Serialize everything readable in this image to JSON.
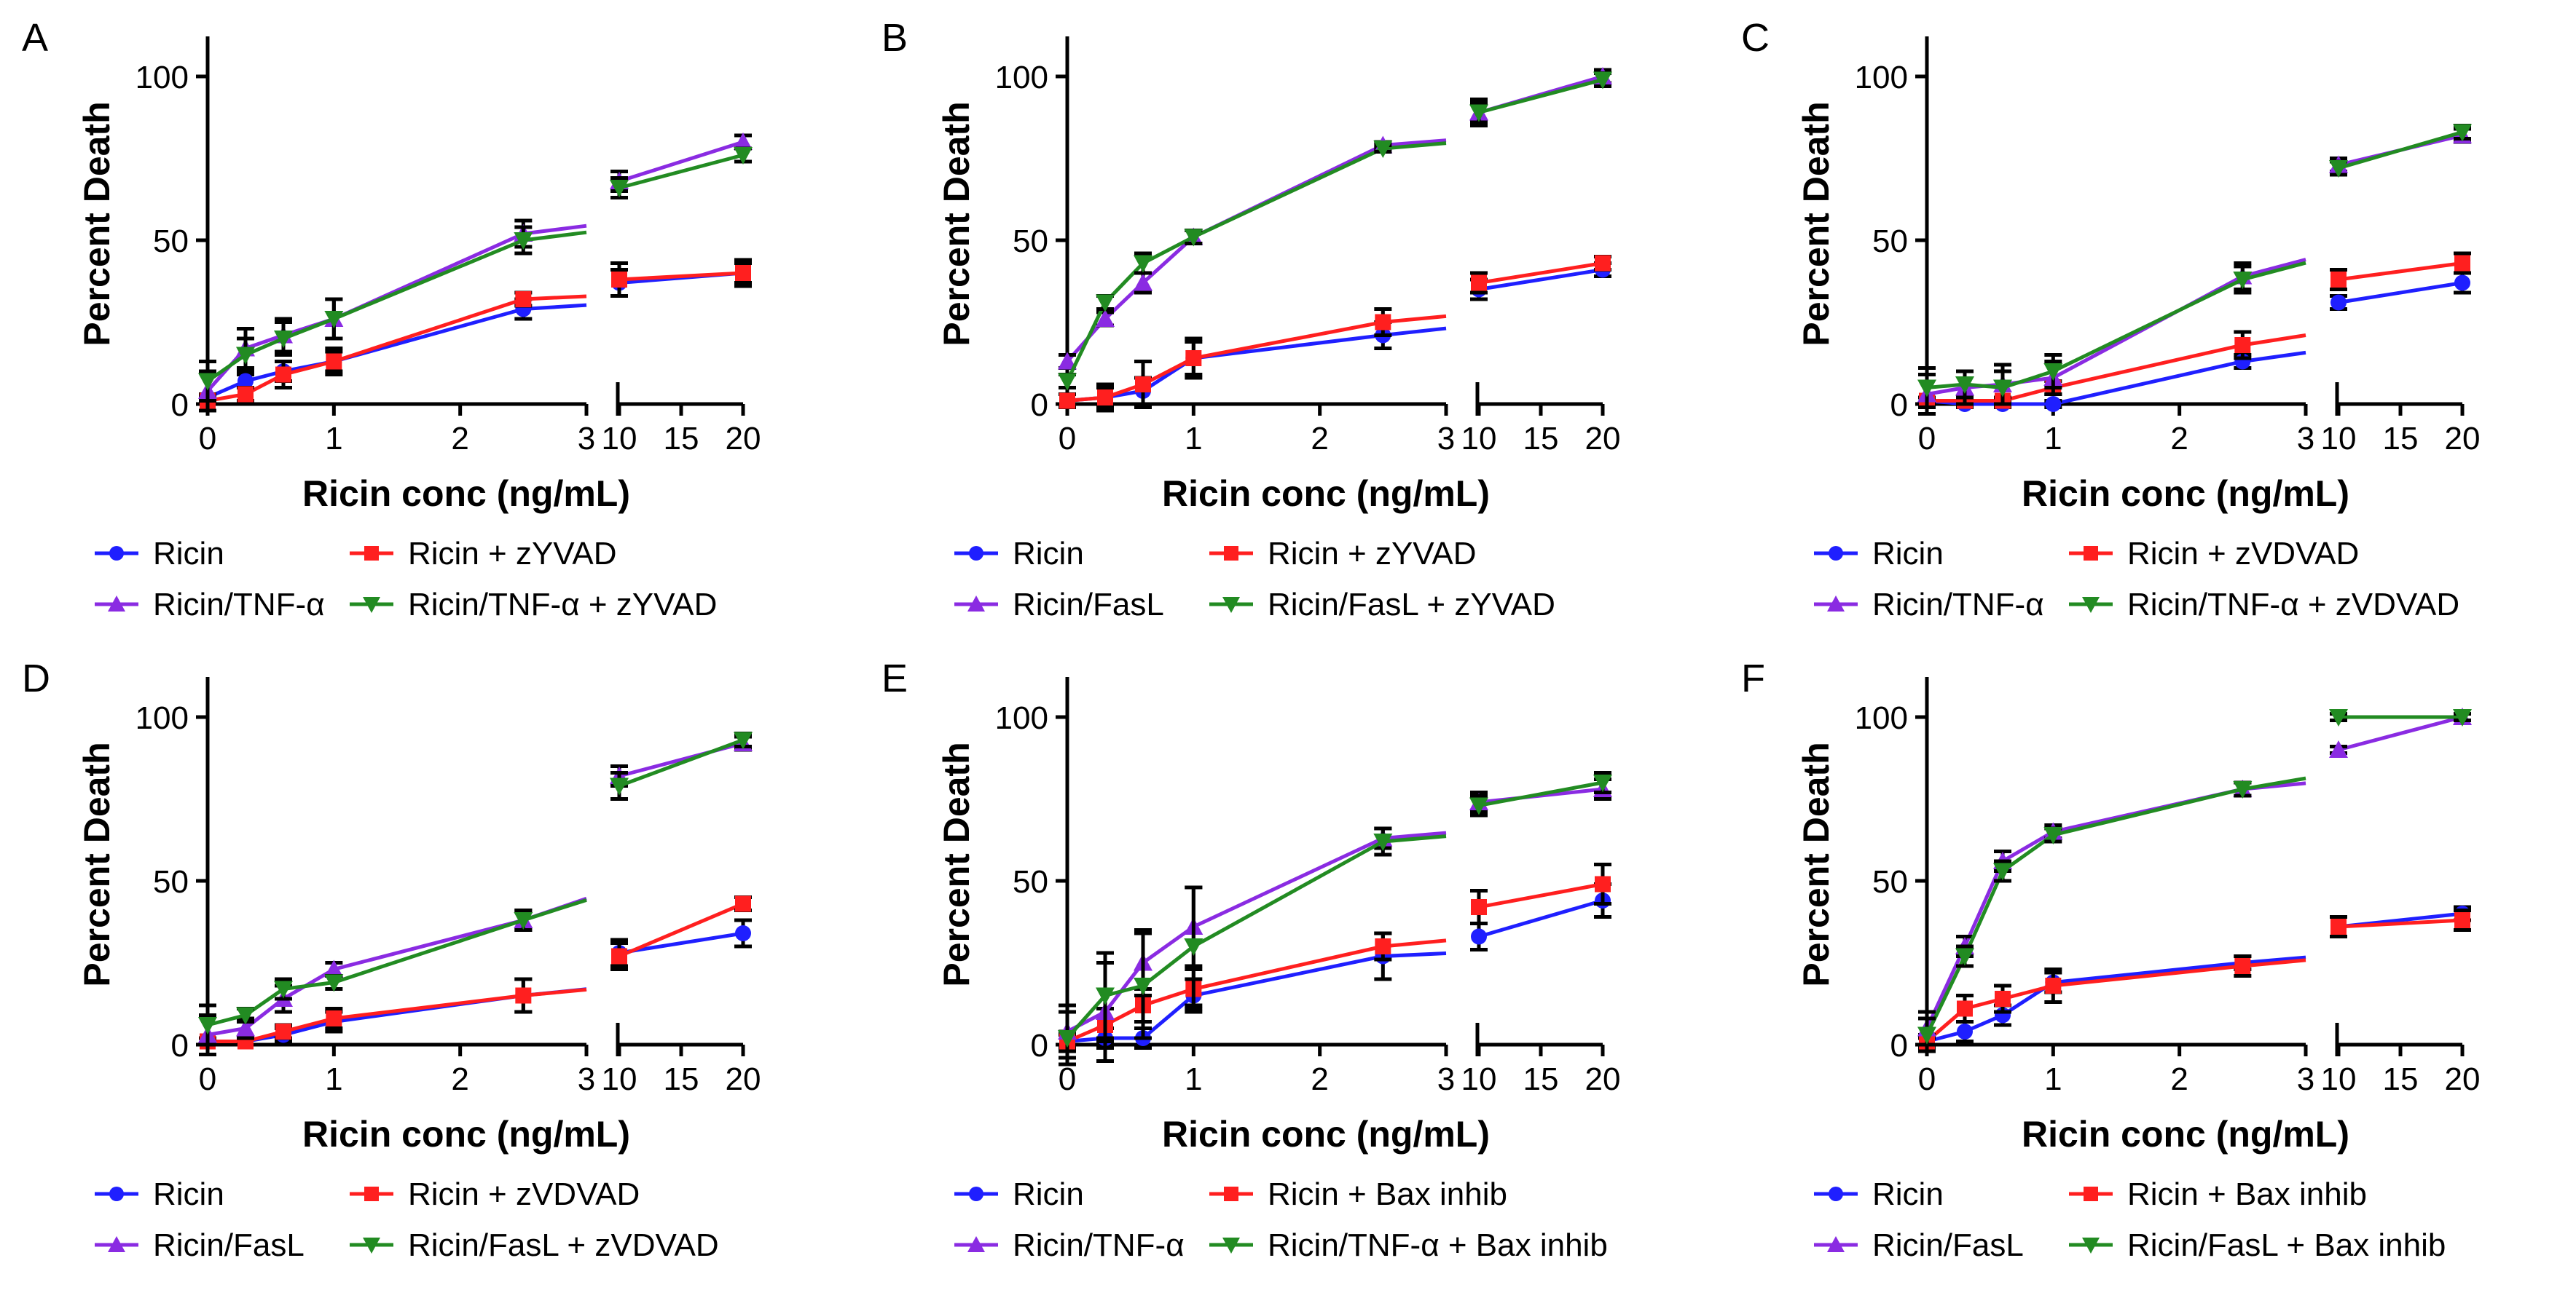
{
  "chart_data": [
    {
      "panel_label": "A",
      "type": "line",
      "xlabel": "Ricin conc (ng/mL)",
      "ylabel": "Percent Death",
      "ylim": [
        0,
        110
      ],
      "yticks": [
        "0",
        "50",
        "100"
      ],
      "x": [
        0,
        0.3,
        0.6,
        1,
        2.5,
        10,
        20
      ],
      "xticks_left": [
        "0",
        "1",
        "2",
        "3"
      ],
      "xticks_right": [
        "10",
        "15",
        "20"
      ],
      "series": [
        {
          "name": "Ricin",
          "color": "#1f1fff",
          "marker": "circle",
          "values": [
            2,
            7,
            10,
            13,
            29,
            37,
            40
          ],
          "errors": [
            1,
            2,
            3,
            3,
            3,
            4,
            3
          ]
        },
        {
          "name": "Ricin + zYVAD",
          "color": "#ff1f1f",
          "marker": "square",
          "values": [
            1,
            3,
            9,
            13,
            32,
            38,
            40
          ],
          "errors": [
            1,
            2,
            4,
            4,
            2,
            5,
            4
          ]
        },
        {
          "name": "Ricin/TNF-α",
          "color": "#8a2be2",
          "marker": "triangle-up",
          "values": [
            4,
            17,
            21,
            26,
            52,
            68,
            80
          ],
          "errors": [
            6,
            6,
            5,
            6,
            4,
            3,
            2
          ]
        },
        {
          "name": "Ricin/TNF-α + zYVAD",
          "color": "#228b22",
          "marker": "triangle-down",
          "values": [
            7,
            15,
            20,
            26,
            50,
            66,
            76
          ],
          "errors": [
            6,
            5,
            5,
            6,
            4,
            3,
            2
          ]
        }
      ]
    },
    {
      "panel_label": "B",
      "type": "line",
      "xlabel": "Ricin conc (ng/mL)",
      "ylabel": "Percent Death",
      "ylim": [
        0,
        110
      ],
      "yticks": [
        "0",
        "50",
        "100"
      ],
      "x": [
        0,
        0.3,
        0.6,
        1,
        2.5,
        10,
        20
      ],
      "xticks_left": [
        "0",
        "1",
        "2",
        "3"
      ],
      "xticks_right": [
        "10",
        "15",
        "20"
      ],
      "series": [
        {
          "name": "Ricin",
          "color": "#1f1fff",
          "marker": "circle",
          "values": [
            1,
            2,
            4,
            14,
            21,
            35,
            41
          ],
          "errors": [
            2,
            3,
            4,
            5,
            4,
            3,
            2
          ]
        },
        {
          "name": "Ricin + zYVAD",
          "color": "#ff1f1f",
          "marker": "square",
          "values": [
            1,
            2,
            6,
            14,
            25,
            37,
            43
          ],
          "errors": [
            2,
            4,
            7,
            6,
            4,
            3,
            2
          ]
        },
        {
          "name": "Ricin/FasL",
          "color": "#8a2be2",
          "marker": "triangle-up",
          "values": [
            13,
            26,
            37,
            51,
            79,
            89,
            100
          ],
          "errors": [
            2,
            2,
            3,
            2,
            1,
            3,
            2
          ]
        },
        {
          "name": "Ricin/FasL + zYVAD",
          "color": "#228b22",
          "marker": "triangle-down",
          "values": [
            7,
            31,
            43,
            51,
            78,
            89,
            99
          ],
          "errors": [
            2,
            2,
            3,
            2,
            1,
            4,
            2
          ]
        }
      ]
    },
    {
      "panel_label": "C",
      "type": "line",
      "xlabel": "Ricin conc (ng/mL)",
      "ylabel": "Percent Death",
      "ylim": [
        0,
        110
      ],
      "yticks": [
        "0",
        "50",
        "100"
      ],
      "x": [
        0,
        0.3,
        0.6,
        1,
        2.5,
        10,
        20
      ],
      "xticks_left": [
        "0",
        "1",
        "2",
        "3"
      ],
      "xticks_right": [
        "10",
        "15",
        "20"
      ],
      "series": [
        {
          "name": "Ricin",
          "color": "#1f1fff",
          "marker": "circle",
          "values": [
            1,
            0,
            0,
            0,
            13,
            31,
            37
          ],
          "errors": [
            1,
            1,
            1,
            1,
            2,
            2,
            3
          ]
        },
        {
          "name": "Ricin + zVDVAD",
          "color": "#ff1f1f",
          "marker": "square",
          "values": [
            1,
            1,
            1,
            5,
            18,
            38,
            43
          ],
          "errors": [
            1,
            1,
            1,
            2,
            4,
            3,
            3
          ]
        },
        {
          "name": "Ricin/TNF-α",
          "color": "#8a2be2",
          "marker": "triangle-up",
          "values": [
            3,
            5,
            6,
            8,
            39,
            73,
            82
          ],
          "errors": [
            6,
            5,
            6,
            5,
            4,
            2,
            2
          ]
        },
        {
          "name": "Ricin/TNF-α + zVDVAD",
          "color": "#228b22",
          "marker": "triangle-down",
          "values": [
            5,
            6,
            5,
            10,
            38,
            72,
            83
          ],
          "errors": [
            6,
            4,
            5,
            5,
            4,
            2,
            2
          ]
        }
      ]
    },
    {
      "panel_label": "D",
      "type": "line",
      "xlabel": "Ricin conc (ng/mL)",
      "ylabel": "Percent Death",
      "ylim": [
        0,
        110
      ],
      "yticks": [
        "0",
        "50",
        "100"
      ],
      "x": [
        0,
        0.3,
        0.6,
        1,
        2.5,
        10,
        20
      ],
      "xticks_left": [
        "0",
        "1",
        "2",
        "3"
      ],
      "xticks_right": [
        "10",
        "15",
        "20"
      ],
      "series": [
        {
          "name": "Ricin",
          "color": "#1f1fff",
          "marker": "circle",
          "values": [
            1,
            1,
            3,
            7,
            15,
            28,
            34
          ],
          "errors": [
            1,
            1,
            2,
            3,
            5,
            4,
            4
          ]
        },
        {
          "name": "Ricin + zVDVAD",
          "color": "#ff1f1f",
          "marker": "square",
          "values": [
            1,
            1,
            4,
            8,
            15,
            27,
            43
          ],
          "errors": [
            1,
            1,
            2,
            3,
            5,
            4,
            2
          ]
        },
        {
          "name": "Ricin/FasL",
          "color": "#8a2be2",
          "marker": "triangle-up",
          "values": [
            3,
            5,
            14,
            23,
            38,
            82,
            92
          ],
          "errors": [
            6,
            3,
            4,
            2,
            3,
            3,
            2
          ]
        },
        {
          "name": "Ricin/FasL + zVDVAD",
          "color": "#228b22",
          "marker": "triangle-down",
          "values": [
            6,
            9,
            17,
            19,
            38,
            79,
            93
          ],
          "errors": [
            6,
            2,
            3,
            2,
            3,
            4,
            2
          ]
        }
      ]
    },
    {
      "panel_label": "E",
      "type": "line",
      "xlabel": "Ricin conc (ng/mL)",
      "ylabel": "Percent Death",
      "ylim": [
        0,
        110
      ],
      "yticks": [
        "0",
        "50",
        "100"
      ],
      "x": [
        0,
        0.3,
        0.6,
        1,
        2.5,
        10,
        20
      ],
      "xticks_left": [
        "0",
        "1",
        "2",
        "3"
      ],
      "xticks_right": [
        "10",
        "15",
        "20"
      ],
      "series": [
        {
          "name": "Ricin",
          "color": "#1f1fff",
          "marker": "circle",
          "values": [
            1,
            2,
            2,
            15,
            27,
            33,
            44
          ],
          "errors": [
            2,
            3,
            3,
            5,
            7,
            4,
            5
          ]
        },
        {
          "name": "Ricin + Bax inhib",
          "color": "#ff1f1f",
          "marker": "square",
          "values": [
            1,
            6,
            12,
            17,
            30,
            42,
            49
          ],
          "errors": [
            3,
            5,
            5,
            6,
            4,
            5,
            6
          ]
        },
        {
          "name": "Ricin/TNF-α",
          "color": "#8a2be2",
          "marker": "triangle-up",
          "values": [
            4,
            10,
            25,
            36,
            63,
            74,
            78
          ],
          "errors": [
            8,
            15,
            10,
            12,
            3,
            3,
            3
          ]
        },
        {
          "name": "Ricin/TNF-α + Bax inhib",
          "color": "#228b22",
          "marker": "triangle-down",
          "values": [
            2,
            15,
            18,
            30,
            62,
            73,
            80
          ],
          "errors": [
            8,
            13,
            16,
            18,
            4,
            3,
            3
          ]
        }
      ]
    },
    {
      "panel_label": "F",
      "type": "line",
      "xlabel": "Ricin conc (ng/mL)",
      "ylabel": "Percent Death",
      "ylim": [
        0,
        110
      ],
      "yticks": [
        "0",
        "50",
        "100"
      ],
      "x": [
        0,
        0.3,
        0.6,
        1,
        2.5,
        10,
        20
      ],
      "xticks_left": [
        "0",
        "1",
        "2",
        "3"
      ],
      "xticks_right": [
        "10",
        "15",
        "20"
      ],
      "series": [
        {
          "name": "Ricin",
          "color": "#1f1fff",
          "marker": "circle",
          "values": [
            1,
            4,
            9,
            19,
            25,
            36,
            40
          ],
          "errors": [
            1,
            3,
            3,
            3,
            2,
            3,
            2
          ]
        },
        {
          "name": "Ricin + Bax inhib",
          "color": "#ff1f1f",
          "marker": "square",
          "values": [
            1,
            11,
            14,
            18,
            24,
            36,
            38
          ],
          "errors": [
            2,
            4,
            4,
            5,
            3,
            3,
            3
          ]
        },
        {
          "name": "Ricin/FasL",
          "color": "#8a2be2",
          "marker": "triangle-up",
          "values": [
            5,
            30,
            56,
            65,
            78,
            90,
            100
          ],
          "errors": [
            5,
            3,
            3,
            2,
            2,
            1,
            1
          ]
        },
        {
          "name": "Ricin/FasL + Bax inhib",
          "color": "#228b22",
          "marker": "triangle-down",
          "values": [
            3,
            27,
            53,
            64,
            78,
            100,
            100
          ],
          "errors": [
            5,
            3,
            3,
            2,
            2,
            1,
            1
          ]
        }
      ]
    }
  ]
}
